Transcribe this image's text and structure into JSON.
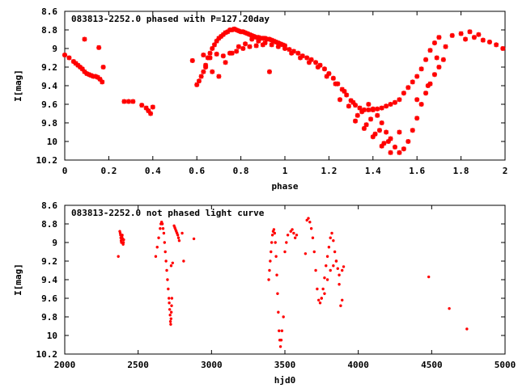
{
  "chart_data": [
    {
      "type": "scatter",
      "title": "083813-2252.0 phased with P=127.20day",
      "xlabel": "phase",
      "ylabel": "I[mag]",
      "xlim": [
        0,
        2
      ],
      "ylim": [
        10.2,
        8.6
      ],
      "y_inverted": true,
      "xticks": [
        "0",
        "0.2",
        "0.4",
        "0.6",
        "0.8",
        "1",
        "1.2",
        "1.4",
        "1.6",
        "1.8",
        "2"
      ],
      "yticks": [
        "8.6",
        "8.8",
        "9",
        "9.2",
        "9.4",
        "9.6",
        "9.8",
        "10",
        "10.2"
      ],
      "marker": "star",
      "color": "#ff0000",
      "grid": false,
      "legend": "none",
      "series": [
        {
          "x": [
            0.0,
            0.02,
            0.04,
            0.05,
            0.06,
            0.07,
            0.08,
            0.09,
            0.1,
            0.11,
            0.12,
            0.13,
            0.14,
            0.15,
            0.16,
            0.17,
            0.09,
            0.155,
            0.175,
            0.27,
            0.29,
            0.31,
            0.35,
            0.37,
            0.38,
            0.4,
            0.39,
            0.58,
            0.6,
            0.61,
            0.62,
            0.63,
            0.64,
            0.65,
            0.66,
            0.67,
            0.68,
            0.69,
            0.7,
            0.71,
            0.72,
            0.73,
            0.74,
            0.75,
            0.76,
            0.77,
            0.78,
            0.79,
            0.8,
            0.81,
            0.82,
            0.83,
            0.84,
            0.85,
            0.86,
            0.87,
            0.88,
            0.89,
            0.9,
            0.91,
            0.92,
            0.93,
            0.94,
            0.95,
            0.96,
            0.97,
            0.98,
            0.99,
            1.0,
            0.63,
            0.66,
            0.69,
            0.72,
            0.75,
            0.78,
            0.81,
            0.84,
            0.87,
            0.9,
            0.64,
            0.67,
            0.7,
            0.73,
            0.76,
            0.79,
            0.82,
            0.85,
            0.88,
            0.91,
            0.94,
            0.97,
            0.93,
            1.0,
            1.02,
            1.04,
            1.06,
            1.08,
            1.1,
            1.12,
            1.14,
            1.16,
            1.18,
            1.2,
            1.22,
            1.24,
            1.26,
            1.28,
            1.3,
            1.32,
            1.34,
            1.36,
            1.38,
            1.4,
            1.42,
            1.44,
            1.46,
            1.48,
            1.5,
            1.52,
            1.54,
            1.56,
            1.58,
            1.6,
            1.62,
            1.64,
            1.66,
            1.68,
            1.7,
            1.03,
            1.07,
            1.11,
            1.15,
            1.19,
            1.23,
            1.27,
            1.31,
            1.35,
            1.39,
            1.43,
            1.47,
            1.25,
            1.29,
            1.33,
            1.37,
            1.41,
            1.45,
            1.38,
            1.4,
            1.42,
            1.44,
            1.46,
            1.48,
            1.5,
            1.52,
            1.54,
            1.56,
            1.58,
            1.6,
            1.62,
            1.64,
            1.66,
            1.68,
            1.7,
            1.72,
            1.32,
            1.36,
            1.4,
            1.44,
            1.48,
            1.52,
            1.6,
            1.65,
            1.69,
            1.73,
            1.76,
            1.8,
            1.84,
            1.88,
            1.9,
            1.93,
            1.96,
            1.99,
            1.82,
            1.86
          ],
          "y": [
            9.07,
            9.1,
            9.14,
            9.16,
            9.18,
            9.2,
            9.22,
            9.25,
            9.27,
            9.28,
            9.29,
            9.3,
            9.3,
            9.31,
            9.33,
            9.36,
            8.9,
            8.99,
            9.2,
            9.57,
            9.57,
            9.57,
            9.61,
            9.64,
            9.67,
            9.63,
            9.7,
            9.13,
            9.39,
            9.35,
            9.3,
            9.25,
            9.18,
            9.1,
            9.05,
            9.0,
            8.96,
            8.92,
            8.89,
            8.87,
            8.85,
            8.83,
            8.82,
            8.8,
            8.8,
            8.79,
            8.8,
            8.81,
            8.82,
            8.82,
            8.83,
            8.84,
            8.85,
            8.86,
            8.87,
            8.88,
            8.88,
            8.89,
            8.89,
            8.89,
            8.9,
            8.9,
            8.91,
            8.92,
            8.93,
            8.94,
            8.95,
            8.96,
            8.97,
            9.07,
            9.1,
            9.06,
            9.08,
            9.05,
            9.03,
            9.0,
            8.98,
            8.97,
            8.96,
            9.2,
            9.25,
            9.3,
            9.15,
            9.05,
            8.98,
            8.95,
            8.9,
            8.92,
            8.94,
            8.96,
            8.98,
            9.25,
            9.0,
            9.01,
            9.03,
            9.05,
            9.08,
            9.1,
            9.12,
            9.15,
            9.18,
            9.22,
            9.27,
            9.32,
            9.38,
            9.44,
            9.5,
            9.56,
            9.61,
            9.64,
            9.66,
            9.66,
            9.66,
            9.65,
            9.64,
            9.62,
            9.6,
            9.58,
            9.55,
            9.48,
            9.42,
            9.36,
            9.3,
            9.22,
            9.12,
            9.02,
            8.94,
            8.88,
            9.05,
            9.1,
            9.15,
            9.2,
            9.3,
            9.38,
            9.46,
            9.58,
            9.68,
            9.76,
            9.88,
            10.0,
            9.55,
            9.62,
            9.72,
            9.82,
            9.92,
            10.02,
            9.6,
            9.65,
            9.72,
            9.8,
            9.9,
            9.97,
            10.06,
            10.12,
            10.08,
            10.0,
            9.88,
            9.75,
            9.6,
            9.48,
            9.38,
            9.28,
            9.2,
            9.12,
            9.78,
            9.86,
            9.95,
            10.05,
            10.12,
            9.9,
            9.55,
            9.4,
            9.1,
            8.98,
            8.86,
            8.84,
            8.82,
            8.85,
            8.91,
            8.93,
            8.96,
            9.0,
            8.9,
            8.88
          ]
        }
      ]
    },
    {
      "type": "scatter",
      "title": "083813-2252.0 not phased light curve",
      "xlabel": "hjd0",
      "ylabel": "I[mag]",
      "xlim": [
        2000,
        5000
      ],
      "ylim": [
        10.2,
        8.6
      ],
      "y_inverted": true,
      "xticks": [
        "2000",
        "2500",
        "3000",
        "3500",
        "4000",
        "4500",
        "5000"
      ],
      "yticks": [
        "8.6",
        "8.8",
        "9",
        "9.2",
        "9.4",
        "9.6",
        "9.8",
        "10",
        "10.2"
      ],
      "marker": "dot",
      "color": "#ff0000",
      "grid": false,
      "legend": "none",
      "series": [
        {
          "x": [
            2365,
            2375,
            2378,
            2380,
            2382,
            2384,
            2386,
            2388,
            2390,
            2392,
            2394,
            2396,
            2398,
            2400,
            2402,
            2620,
            2630,
            2640,
            2650,
            2655,
            2660,
            2665,
            2670,
            2675,
            2680,
            2685,
            2690,
            2695,
            2700,
            2705,
            2710,
            2712,
            2715,
            2718,
            2720,
            2722,
            2724,
            2726,
            2728,
            2730,
            2725,
            2735,
            2745,
            2750,
            2755,
            2760,
            2765,
            2770,
            2775,
            2780,
            2800,
            2810,
            2880,
            3390,
            3395,
            3400,
            3405,
            3410,
            3415,
            3420,
            3425,
            3430,
            3435,
            3440,
            3445,
            3450,
            3455,
            3460,
            3465,
            3470,
            3475,
            3480,
            3490,
            3500,
            3510,
            3520,
            3540,
            3550,
            3560,
            3570,
            3580,
            3640,
            3650,
            3660,
            3670,
            3680,
            3690,
            3700,
            3710,
            3720,
            3730,
            3740,
            3750,
            3760,
            3770,
            3780,
            3790,
            3800,
            3810,
            3820,
            3830,
            3840,
            3850,
            3860,
            3870,
            3880,
            3890,
            3900,
            3750,
            3770,
            3790,
            3810,
            3830,
            3850,
            3870,
            3890,
            4480,
            4620,
            4740
          ],
          "y": [
            9.15,
            8.88,
            8.9,
            8.92,
            8.95,
            8.98,
            9.0,
            8.97,
            8.94,
            8.92,
            8.96,
            9.0,
            9.02,
            9.0,
            8.97,
            9.15,
            9.05,
            8.95,
            8.85,
            8.8,
            8.78,
            8.8,
            8.85,
            8.9,
            9.0,
            9.1,
            9.2,
            9.3,
            9.4,
            9.5,
            9.6,
            9.65,
            9.72,
            9.78,
            9.85,
            9.88,
            9.82,
            9.75,
            9.68,
            9.6,
            9.25,
            9.22,
            8.82,
            8.84,
            8.86,
            8.88,
            8.9,
            8.92,
            8.95,
            8.98,
            8.9,
            9.2,
            8.96,
            9.4,
            9.3,
            9.2,
            9.1,
            9.0,
            8.92,
            8.88,
            8.86,
            8.9,
            9.0,
            9.15,
            9.35,
            9.55,
            9.75,
            9.95,
            10.05,
            10.12,
            10.05,
            9.95,
            9.8,
            9.1,
            9.0,
            8.92,
            8.88,
            8.86,
            8.9,
            8.95,
            8.92,
            9.12,
            8.76,
            8.74,
            8.78,
            8.85,
            8.95,
            9.1,
            9.3,
            9.5,
            9.62,
            9.65,
            9.6,
            9.5,
            9.38,
            9.25,
            9.15,
            9.05,
            8.95,
            8.9,
            8.98,
            9.1,
            9.2,
            9.28,
            9.35,
            9.68,
            9.62,
            9.26,
            9.6,
            9.55,
            9.4,
            9.3,
            9.25,
            9.2,
            9.45,
            9.3,
            9.37,
            9.71,
            9.93
          ]
        }
      ]
    }
  ]
}
